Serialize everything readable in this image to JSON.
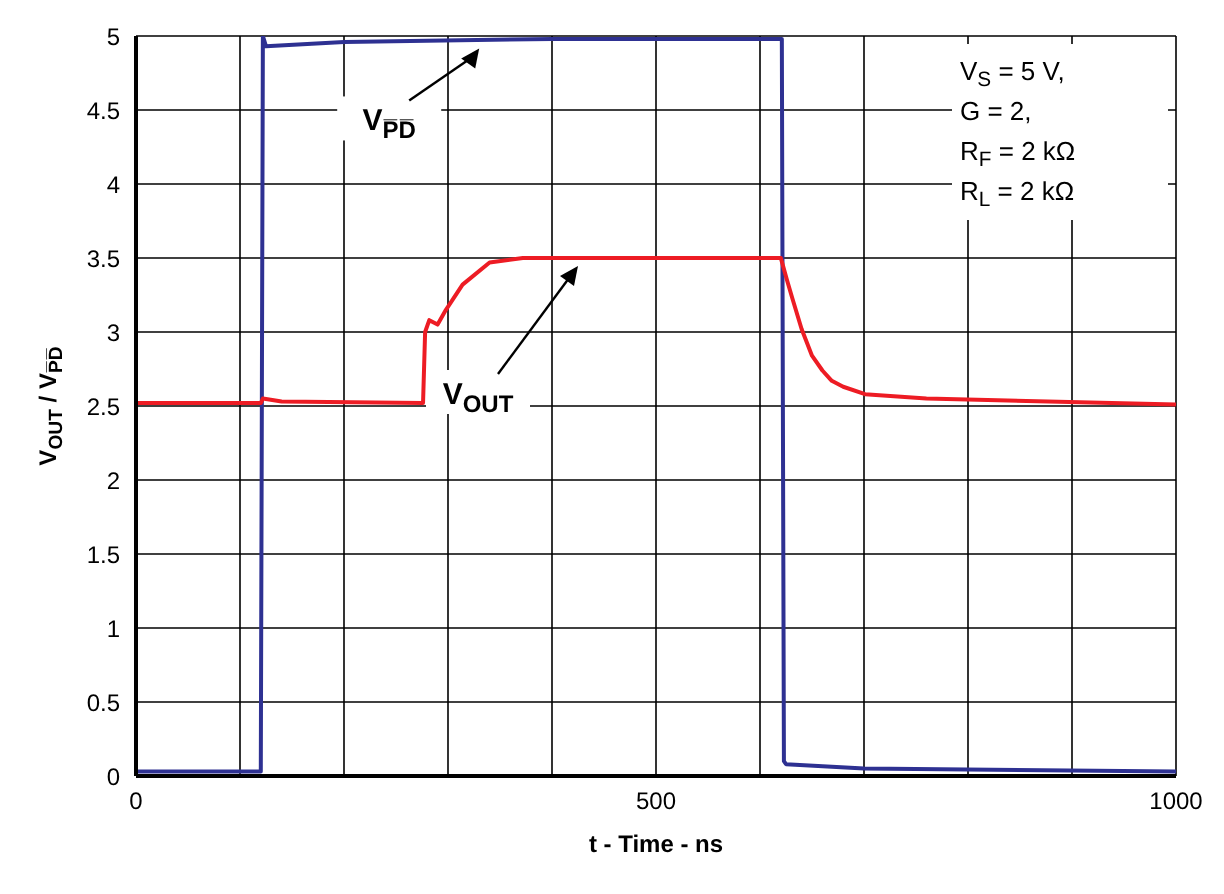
{
  "chart_data": {
    "type": "line",
    "xlabel": "t - Time - ns",
    "ylabel": "V$_{OUT}$ / V$_{P̅D̅}$",
    "xlim": [
      0,
      1000
    ],
    "xticks": [
      0,
      {
        "value": 100,
        "label": null
      },
      {
        "value": 200,
        "label": null
      },
      {
        "value": 300,
        "label": null
      },
      {
        "value": 400,
        "label": null
      },
      500,
      {
        "value": 600,
        "label": null
      },
      {
        "value": 700,
        "label": null
      },
      {
        "value": 800,
        "label": null
      },
      {
        "value": 900,
        "label": null
      },
      1000
    ],
    "ylim": [
      0,
      5
    ],
    "yticks": [
      0,
      0.5,
      1,
      1.5,
      2,
      2.5,
      3,
      3.5,
      4,
      4.5,
      5
    ],
    "grid": true,
    "marker": "none",
    "line_style": "solid",
    "series": [
      {
        "color": "#2e3192",
        "x": [
          0,
          120,
          121,
          122,
          125,
          200,
          400,
          621,
          622,
          623,
          625,
          700,
          1000
        ],
        "values": [
          0.03,
          0.03,
          2.5,
          5,
          4.93,
          4.96,
          4.98,
          4.98,
          2.5,
          0.1,
          0.08,
          0.05,
          0.03
        ]
      },
      {
        "color": "#ed1c24",
        "x": [
          0,
          120,
          122,
          140,
          276,
          278,
          282,
          290,
          298,
          314,
          340,
          372,
          620,
          622,
          626,
          631,
          640,
          650,
          660,
          669,
          680,
          701,
          760,
          1000
        ],
        "values": [
          2.52,
          2.52,
          2.55,
          2.53,
          2.52,
          3.0,
          3.08,
          3.05,
          3.15,
          3.32,
          3.47,
          3.5,
          3.5,
          3.45,
          3.35,
          3.23,
          3.02,
          2.84,
          2.74,
          2.67,
          2.63,
          2.58,
          2.55,
          2.51
        ]
      }
    ],
    "annotations": [
      {
        "text": "V$_{P̅D̅}$",
        "x": 330,
        "y": 4.97
      },
      {
        "text": "V$_{OUT}$",
        "x": 425,
        "y": 3.5
      },
      "V$_{S}$ = 5 V,",
      "G = 2,",
      "R$_{F}$ = 2 kΩ",
      "R$_{L}$ = 2 kΩ"
    ]
  }
}
